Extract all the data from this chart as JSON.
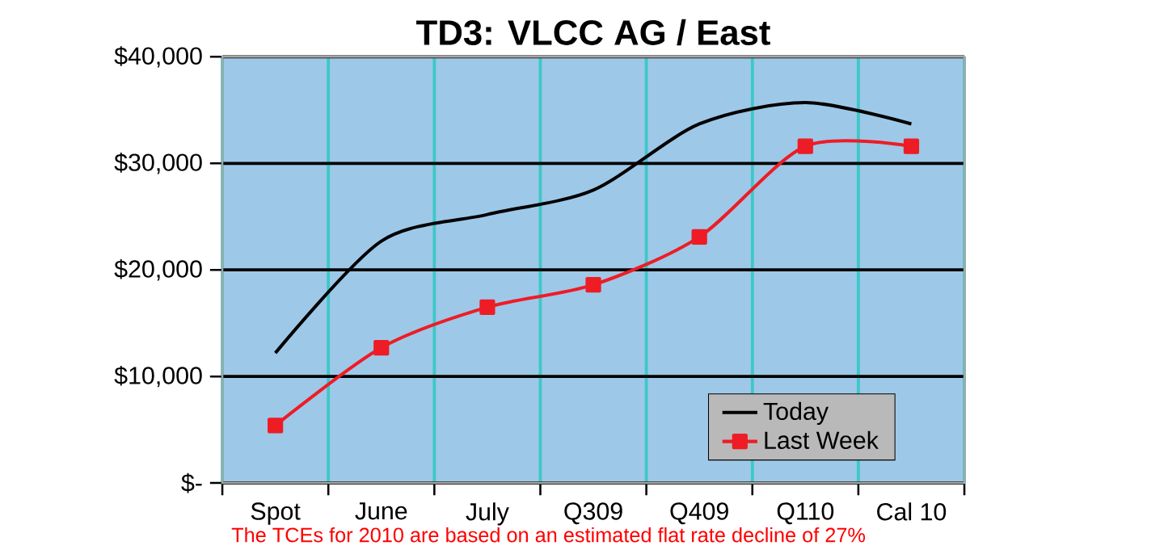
{
  "chart_data": {
    "type": "line",
    "title": "TD3:  VLCC AG / East",
    "categories": [
      "Spot",
      "June",
      "July",
      "Q309",
      "Q409",
      "Q110",
      "Cal 10"
    ],
    "series": [
      {
        "name": "Today",
        "color": "#000000",
        "marker": "none",
        "values": [
          12200,
          22700,
          25200,
          27500,
          33700,
          35700,
          33700
        ]
      },
      {
        "name": "Last Week",
        "color": "#ee1c25",
        "marker": "square",
        "values": [
          5400,
          12700,
          16500,
          18600,
          23100,
          31600,
          31600
        ]
      }
    ],
    "ylim": [
      0,
      40000
    ],
    "yticks": [
      {
        "value": 0,
        "label": "$-"
      },
      {
        "value": 10000,
        "label": "$10,000"
      },
      {
        "value": 20000,
        "label": "$20,000"
      },
      {
        "value": 30000,
        "label": "$30,000"
      },
      {
        "value": 40000,
        "label": "$40,000"
      }
    ],
    "grid": true,
    "legend": "bottom right",
    "line_style": "solid",
    "annotations": [
      "The TCEs for 2010 are based on an estimated flat rate decline of 27%"
    ]
  }
}
